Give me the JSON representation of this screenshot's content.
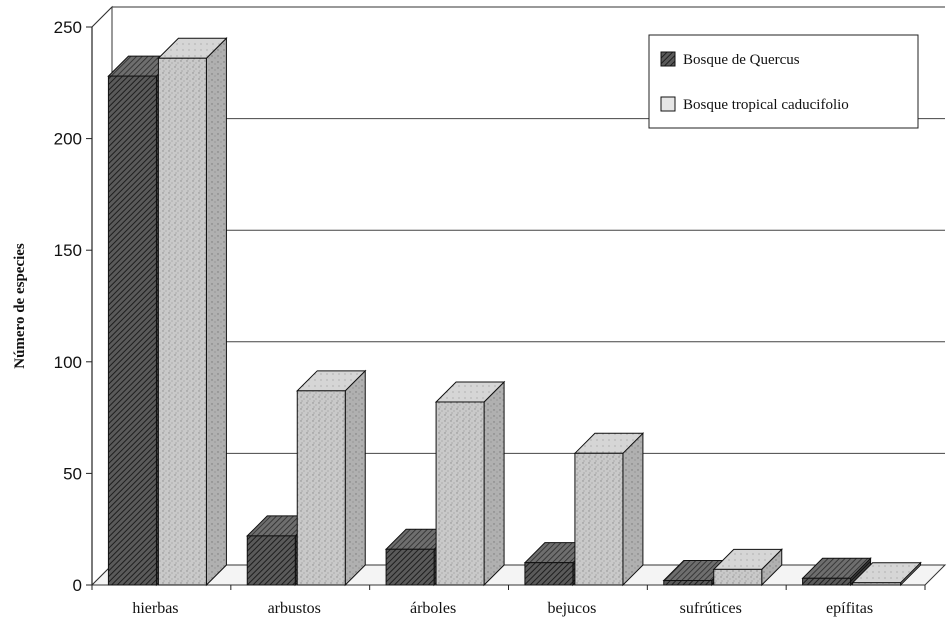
{
  "chart_data": {
    "type": "bar",
    "variant": "3d-clustered",
    "title": "",
    "xlabel": "",
    "ylabel": "Número de especies",
    "ylim": [
      0,
      250
    ],
    "yticks": [
      0,
      50,
      100,
      150,
      200,
      250
    ],
    "grid": true,
    "legend_position": "top-right",
    "categories": [
      "hierbas",
      "arbustos",
      "árboles",
      "bejucos",
      "sufrútices",
      "epífitas"
    ],
    "series": [
      {
        "name": "Bosque de Quercus",
        "values": [
          228,
          22,
          16,
          10,
          2,
          3
        ],
        "color": "#3a3a3a",
        "pattern": "diagonal-hatch"
      },
      {
        "name": "Bosque tropical caducifolio",
        "values": [
          236,
          87,
          82,
          59,
          7,
          1
        ],
        "color": "#c8c8c8",
        "pattern": "speckled"
      }
    ]
  }
}
